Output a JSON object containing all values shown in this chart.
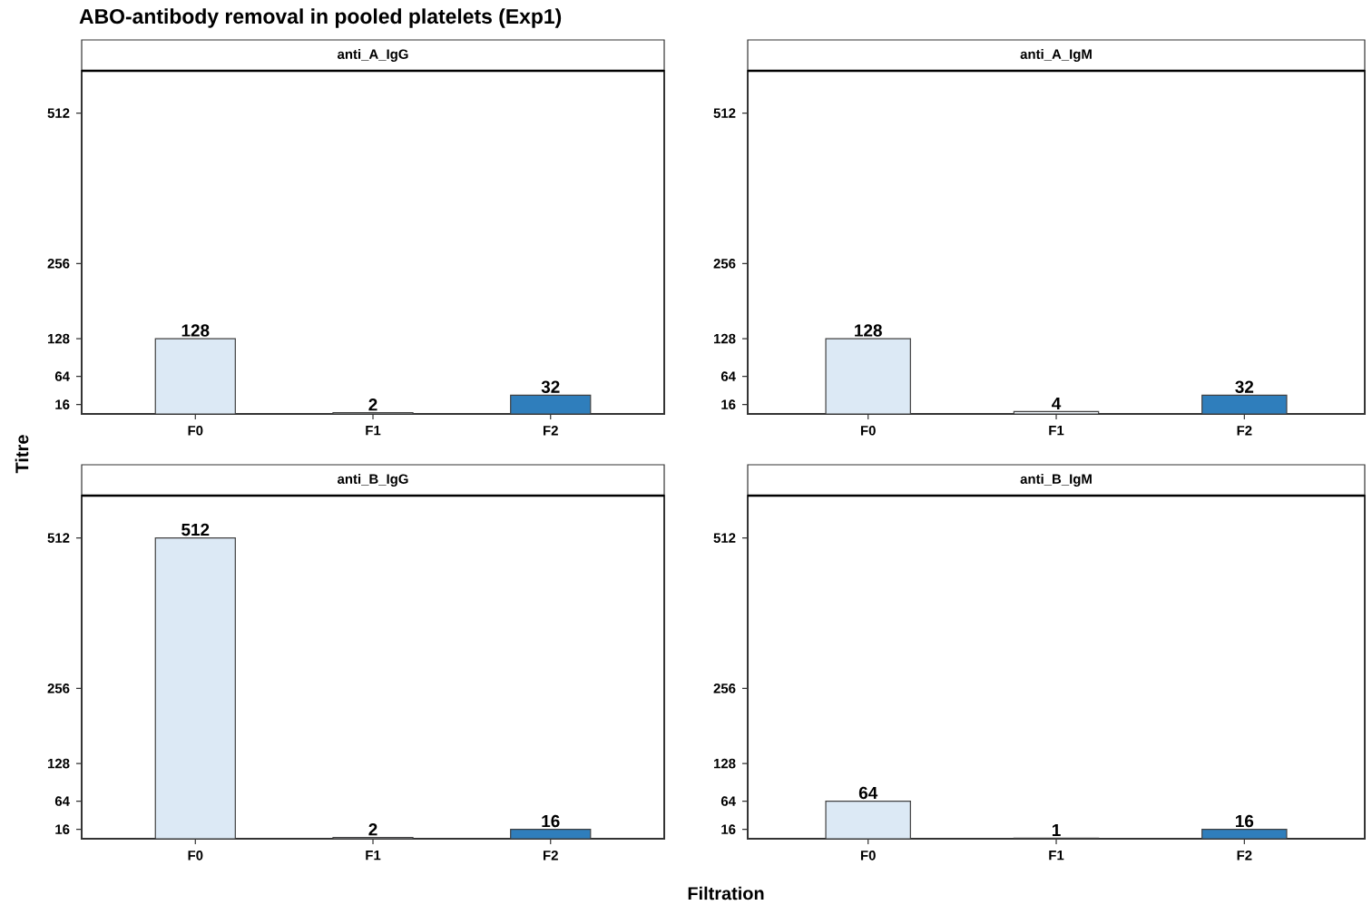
{
  "chart_data": [
    {
      "type": "bar",
      "title": "ABO-antibody removal in pooled platelets (Exp1)",
      "subtitle": "anti_A_IgG",
      "categories": [
        "F0",
        "F1",
        "F2"
      ],
      "values": [
        128,
        2,
        32
      ],
      "colors": [
        "#dce9f5",
        "#eef4fa",
        "#2f7ebc"
      ],
      "ylim": [
        0,
        584
      ],
      "yticks": [
        16,
        64,
        128,
        256,
        512
      ],
      "data_labels": true
    },
    {
      "type": "bar",
      "subtitle": "anti_A_IgM",
      "categories": [
        "F0",
        "F1",
        "F2"
      ],
      "values": [
        128,
        4,
        32
      ],
      "colors": [
        "#dce9f5",
        "#eef4fa",
        "#2f7ebc"
      ],
      "ylim": [
        0,
        584
      ],
      "yticks": [
        16,
        64,
        128,
        256,
        512
      ],
      "data_labels": true
    },
    {
      "type": "bar",
      "subtitle": "anti_B_IgG",
      "xlabel": "Filtration",
      "ylabel": "Titre",
      "categories": [
        "F0",
        "F1",
        "F2"
      ],
      "values": [
        512,
        2,
        16
      ],
      "colors": [
        "#dce9f5",
        "#eef4fa",
        "#2f7ebc"
      ],
      "ylim": [
        0,
        584
      ],
      "yticks": [
        16,
        64,
        128,
        256,
        512
      ],
      "data_labels": true
    },
    {
      "type": "bar",
      "subtitle": "anti_B_IgM",
      "categories": [
        "F0",
        "F1",
        "F2"
      ],
      "values": [
        64,
        1,
        16
      ],
      "colors": [
        "#dce9f5",
        "#eef4fa",
        "#2f7ebc"
      ],
      "ylim": [
        0,
        584
      ],
      "yticks": [
        16,
        64,
        128,
        256,
        512
      ],
      "data_labels": true
    }
  ]
}
